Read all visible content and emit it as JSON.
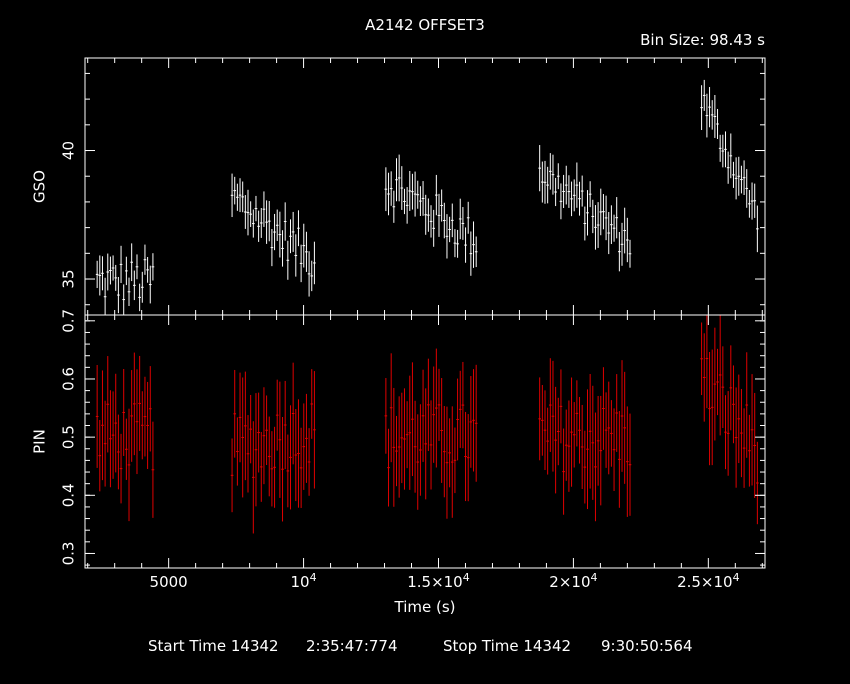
{
  "chart_data": {
    "type": "scatter",
    "title": "A2142 OFFSET3",
    "bin_size_label": "Bin Size: 98.43 s",
    "xlabel": "Time (s)",
    "xlim": [
      1900,
      27100
    ],
    "x_ticks": [
      5000,
      10000,
      15000,
      20000,
      25000
    ],
    "x_tick_labels": [
      {
        "base": "5000",
        "exp": ""
      },
      {
        "base": "10",
        "exp": "4"
      },
      {
        "base": "1.5×10",
        "exp": "4"
      },
      {
        "base": "2×10",
        "exp": "4"
      },
      {
        "base": "2.5×10",
        "exp": "4"
      }
    ],
    "footer": {
      "start_label": "Start Time 14342",
      "start_value": "2:35:47:774",
      "stop_label": "Stop Time 14342",
      "stop_value": "9:30:50:564"
    },
    "panels": [
      {
        "name": "GSO",
        "ylabel": "GSO",
        "ylim": [
          33.6,
          43.6
        ],
        "y_ticks": [
          35,
          40
        ],
        "y_tick_labels": [
          "35",
          "40"
        ],
        "color": "#ffffff",
        "segments": [
          {
            "t0": 2350,
            "n": 22,
            "y0": 34.9,
            "amp": 0.9,
            "slope": 0.0,
            "err": 0.6
          },
          {
            "t0": 7350,
            "n": 32,
            "y0": 38.2,
            "amp": 0.8,
            "slope": -2.5,
            "err": 0.7
          },
          {
            "t0": 13050,
            "n": 35,
            "y0": 38.8,
            "amp": 0.8,
            "slope": -2.3,
            "err": 0.7
          },
          {
            "t0": 18750,
            "n": 35,
            "y0": 39.2,
            "amp": 0.7,
            "slope": -2.8,
            "err": 0.7
          },
          {
            "t0": 24750,
            "n": 22,
            "y0": 42.0,
            "amp": 0.6,
            "slope": -4.5,
            "err": 0.7
          }
        ]
      },
      {
        "name": "PIN",
        "ylabel": "PIN",
        "ylim": [
          0.275,
          0.71
        ],
        "y_ticks": [
          0.3,
          0.4,
          0.5,
          0.6,
          0.7
        ],
        "y_tick_labels": [
          "0.3",
          "0.4",
          "0.5",
          "0.6",
          "0.7"
        ],
        "color": "#e00000",
        "segments": [
          {
            "t0": 2350,
            "n": 22,
            "y0": 0.5,
            "amp": 0.06,
            "slope": 0.0,
            "err": 0.075
          },
          {
            "t0": 7350,
            "n": 32,
            "y0": 0.48,
            "amp": 0.06,
            "slope": 0.03,
            "err": 0.08
          },
          {
            "t0": 13050,
            "n": 35,
            "y0": 0.5,
            "amp": 0.06,
            "slope": 0.0,
            "err": 0.08
          },
          {
            "t0": 18750,
            "n": 35,
            "y0": 0.5,
            "amp": 0.06,
            "slope": 0.0,
            "err": 0.08
          },
          {
            "t0": 24750,
            "n": 22,
            "y0": 0.6,
            "amp": 0.06,
            "slope": -0.12,
            "err": 0.08
          }
        ]
      }
    ],
    "bin_width": 98.43
  }
}
